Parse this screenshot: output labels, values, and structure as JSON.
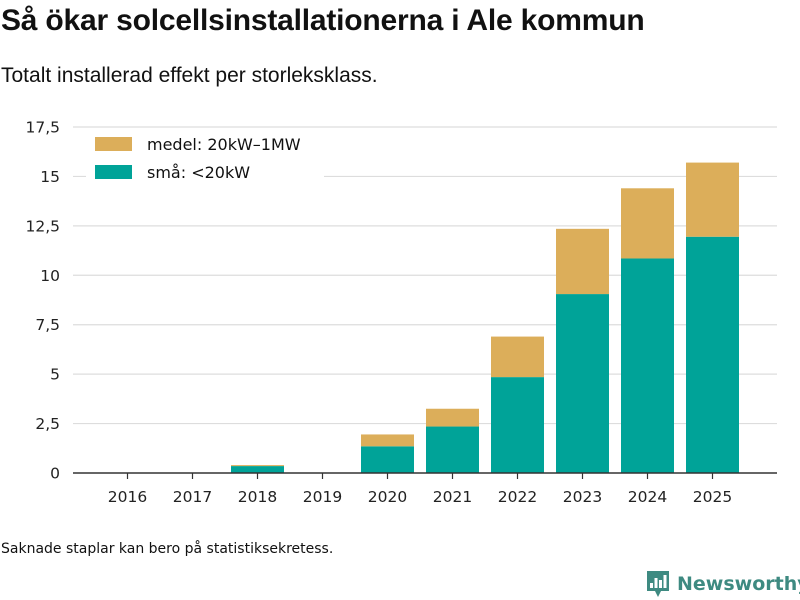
{
  "title": "Så ökar solcellsinstallationerna i Ale kommun",
  "subtitle": "Totalt installerad effekt per storleksklass.",
  "footnote": "Saknade staplar kan bero på statistiksekretess.",
  "brand": {
    "name": "Newsworthy",
    "icon": "bar-chart-logo-icon",
    "color": "#3e8a81"
  },
  "chart_data": {
    "type": "bar",
    "stacked": true,
    "title": "Så ökar solcellsinstallationerna i Ale kommun",
    "xlabel": "",
    "ylabel": "",
    "ylim": [
      0,
      17.5
    ],
    "yticks": [
      0,
      2.5,
      5,
      7.5,
      10,
      12.5,
      15,
      17.5
    ],
    "ytick_labels": [
      "0",
      "2,5",
      "5",
      "7,5",
      "10",
      "12,5",
      "15",
      "17,5"
    ],
    "grid": true,
    "legend_position": "top-left",
    "categories": [
      "2016",
      "2017",
      "2018",
      "2019",
      "2020",
      "2021",
      "2022",
      "2023",
      "2024",
      "2025"
    ],
    "series": [
      {
        "name": "små: <20kW",
        "color": "#00a398",
        "values": [
          0,
          0,
          0.35,
          0,
          1.35,
          2.35,
          4.85,
          9.05,
          10.85,
          11.95
        ]
      },
      {
        "name": "medel: 20kW–1MW",
        "color": "#dcae5a",
        "values": [
          0,
          0,
          0.05,
          0,
          0.6,
          0.9,
          2.05,
          3.3,
          3.55,
          3.75
        ]
      }
    ],
    "legend_order": [
      "medel: 20kW–1MW",
      "små: <20kW"
    ]
  }
}
